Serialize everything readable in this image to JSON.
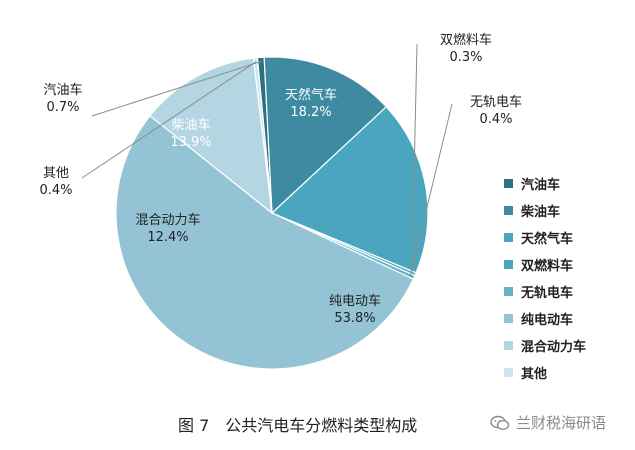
{
  "chart_data": {
    "type": "pie",
    "categories": [
      "汽油车",
      "柴油车",
      "天然气车",
      "双燃料车",
      "无轨电车",
      "纯电动车",
      "混合动力车",
      "其他"
    ],
    "values": [
      0.7,
      13.9,
      18.2,
      0.3,
      0.4,
      53.8,
      12.4,
      0.4
    ],
    "value_labels": [
      "0.7%",
      "13.9%",
      "18.2%",
      "0.3%",
      "0.4%",
      "53.8%",
      "12.4%",
      "0.4%"
    ],
    "colors": [
      "#2e6f82",
      "#3e8aa0",
      "#4aa6bf",
      "#4aa6bf",
      "#66b3c7",
      "#93c3d5",
      "#b3d6e2",
      "#cde5ed"
    ],
    "legend_position": "right"
  },
  "caption": "图 7　公共汽电车分燃料类型构成",
  "watermark": "兰财税海研语"
}
